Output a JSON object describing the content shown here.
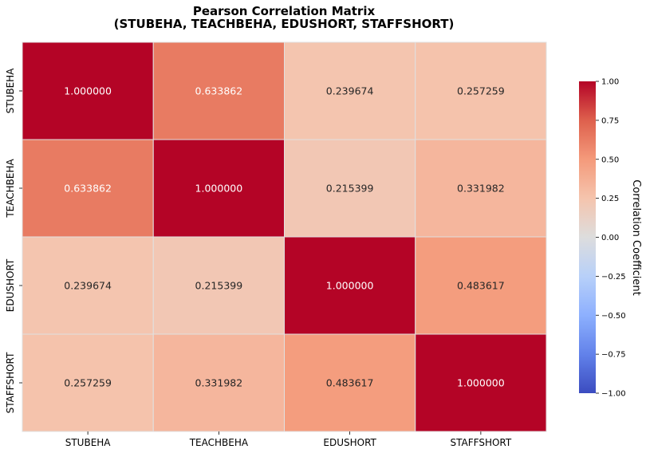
{
  "chart_data": {
    "type": "heatmap",
    "title": "Pearson Correlation Matrix",
    "subtitle": "(STUBEHA, TEACHBEHA, EDUSHORT, STAFFSHORT)",
    "x_categories": [
      "STUBEHA",
      "TEACHBEHA",
      "EDUSHORT",
      "STAFFSHORT"
    ],
    "y_categories": [
      "STUBEHA",
      "TEACHBEHA",
      "EDUSHORT",
      "STAFFSHORT"
    ],
    "values": [
      [
        1.0,
        0.633862,
        0.239674,
        0.257259
      ],
      [
        0.633862,
        1.0,
        0.215399,
        0.331982
      ],
      [
        0.239674,
        0.215399,
        1.0,
        0.483617
      ],
      [
        0.257259,
        0.331982,
        0.483617,
        1.0
      ]
    ],
    "value_labels": [
      [
        "1.000000",
        "0.633862",
        "0.239674",
        "0.257259"
      ],
      [
        "0.633862",
        "1.000000",
        "0.215399",
        "0.331982"
      ],
      [
        "0.239674",
        "0.215399",
        "1.000000",
        "0.483617"
      ],
      [
        "0.257259",
        "0.331982",
        "0.483617",
        "1.000000"
      ]
    ],
    "colormap": "coolwarm",
    "vmin": -1.0,
    "vmax": 1.0,
    "colorbar": {
      "label": "Correlation Coefficient",
      "ticks": [
        1.0,
        0.75,
        0.5,
        0.25,
        0.0,
        -0.25,
        -0.5,
        -0.75,
        -1.0
      ],
      "tick_labels": [
        "1.00",
        "0.75",
        "0.50",
        "0.25",
        "0.00",
        "−0.25",
        "−0.50",
        "−0.75",
        "−1.00"
      ]
    },
    "colors": {
      "dark_red": "#b40426",
      "neutral": "#dddddd",
      "dark_blue": "#3b4cc0",
      "cell_border": "#e0e0e0"
    }
  }
}
